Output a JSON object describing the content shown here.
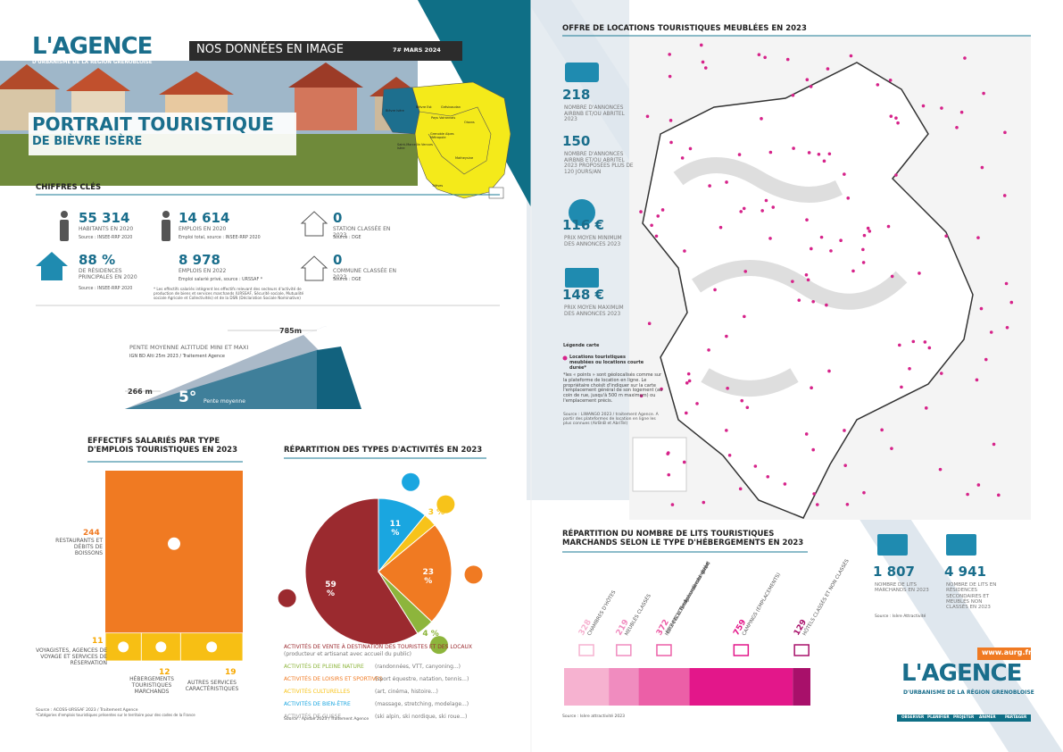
{
  "header": {
    "logo": "L'AGENCE",
    "logo_sub": "D'URBANISME DE LA RÉGION GRENOBLOISE",
    "series": "NOS DONNÉES EN IMAGE",
    "issue": "7# MARS 2024",
    "title": "PORTRAIT TOURISTIQUE",
    "subtitle": "DE BIÈVRE ISÈRE"
  },
  "region_map": {
    "labels": [
      "Bièvre Isère",
      "Bièvre Est",
      "Pays Voironnais",
      "Grésivaudan",
      "Saint-Marcellin Vercors Isère",
      "Grenoble Alpes Métropole",
      "Oisans",
      "Matheysine",
      "Trièves"
    ]
  },
  "key_figures": {
    "title": "CHIFFRES CLÉS",
    "items": [
      {
        "value": "55 314",
        "label": "HABITANTS EN 2020",
        "source": "Source : INSEE-RRP 2020"
      },
      {
        "value": "14 614",
        "label": "EMPLOIS EN 2020",
        "source": "Emploi total, source : INSEE-RRP 2020"
      },
      {
        "value": "0",
        "label": "STATION CLASSÉE EN 2023",
        "source": "Source : DGE"
      },
      {
        "value": "88 %",
        "label": "DE RÉSIDENCES PRINCIPALES EN 2020",
        "source": "Source : INSEE-RRP 2020"
      },
      {
        "value": "8 978",
        "label": "EMPLOIS EN 2022",
        "source": "Emploi salarié privé, source : URSSAF *"
      },
      {
        "value": "0",
        "label": "COMMUNE CLASSÉE EN 2023",
        "source": "Source : DGE"
      }
    ],
    "footnote": "* Les effectifs salariés intègrent les effectifs relevant des secteurs d'activité de production de biens et services marchands (URSSAF, Sécurité sociale, Mutualité sociale Agricole et Collectivités) et de la DSN (Déclaration Sociale Nominative)"
  },
  "slope": {
    "max": "785m",
    "title": "PENTE MOYENNE ALTITUDE MINI ET MAXI",
    "source": "IGN BD Alti 25m 2023 / Traitement Agence",
    "min": "266 m",
    "value": "5°",
    "label": "Pente moyenne"
  },
  "chart_data": [
    {
      "type": "treemap",
      "title": "EFFECTIFS SALARIÉS PAR TYPE D'EMPLOIS TOURISTIQUES EN 2023",
      "categories": [
        "RESTAURANTS ET DÉBITS DE BOISSONS",
        "VOYAGISTES, AGENCES DE VOYAGE ET SERVICES DE RÉSERVATION",
        "HÉBERGEMENTS TOURISTIQUES MARCHANDS",
        "AUTRES SERVICES CARACTÉRISTIQUES"
      ],
      "values": [
        244,
        11,
        12,
        19
      ],
      "colors": [
        "#f07a22",
        "#f7bf14",
        "#f7bf14",
        "#f7bf14"
      ],
      "source": "Source : ACOSS-URSSAF 2023 / Traitement Agence",
      "footnote": "*Catégories d'emplois touristiques présentes sur le territoire pour des codes de la France"
    },
    {
      "type": "pie",
      "title": "RÉPARTITION DES TYPES D'ACTIVITÉS EN 2023",
      "categories": [
        "ACTIVITÉS DE VENTE À DESTINATION DES TOURISTES ET DES LOCAUX",
        "ACTIVITÉS DE PLEINE NATURE",
        "ACTIVITÉS DE LOISIRS ET SPORTIVES",
        "ACTIVITÉS CULTURELLES",
        "ACTIVITÉS DE BIEN-ÊTRE",
        "ACTIVITÉS DE GLISSE"
      ],
      "descriptions": [
        "(producteur et artisanat avec accueil du public)",
        "(randonnées, VTT, canyoning...)",
        "(sport équestre, natation, tennis...)",
        "(art, cinéma, histoire...)",
        "(massage, stretching, modelage...)",
        "(ski alpin, ski nordique, ski roue...)"
      ],
      "values": [
        59,
        4,
        23,
        3,
        11,
        0
      ],
      "value_labels": [
        "59 %",
        "4 %",
        "23 %",
        "3 %",
        "11 %",
        null
      ],
      "colors": [
        "#9b2a2f",
        "#8db53c",
        "#f07a22",
        "#f7c31a",
        "#1aa6e0",
        "#9a9a9a"
      ],
      "source": "Source : Apidae 2023 / Traitement Agence"
    },
    {
      "type": "stacked-bar",
      "title": "RÉPARTITION DU NOMBRE DE LITS TOURISTIQUES MARCHANDS SELON LE TYPE D'HÉBERGEMENTS EN 2023",
      "categories": [
        "CHAMBRES D'HÔTES",
        "MEUBLÉS CLASSÉS",
        "HÉBERGEMENTS COLLECTIFS (centres et villages de vacances, résidences de tourisme, gîtes de séjour etc.)",
        "CAMPINGS (EMPLACEMENTS)",
        "HÔTELS CLASSÉS ET NON CLASSÉS"
      ],
      "values": [
        328,
        219,
        372,
        759,
        129
      ],
      "colors": [
        "#f6b2d0",
        "#f08cbf",
        "#ec5fa7",
        "#e3178a",
        "#a8106a"
      ],
      "source": "Source : Isère attractivité 2023"
    }
  ],
  "rentals": {
    "title": "OFFRE DE LOCATIONS TOURISTIQUES MEUBLÉES EN 2023",
    "items": [
      {
        "value": "218",
        "label": "NOMBRE D'ANNONCES AIRBNB ET/OU ABRITEL 2023"
      },
      {
        "value": "150",
        "label": "NOMBRE D'ANNONCES AIRBNB ET/OU ABRITEL 2023 PROPOSÉES PLUS DE 120 JOURS/AN"
      },
      {
        "value": "116 €",
        "label": "PRIX MOYEN MINIMUM DES ANNONCES 2023"
      },
      {
        "value": "148 €",
        "label": "PRIX MOYEN MAXIMUM DES ANNONCES 2023"
      }
    ],
    "legend_title": "Légende carte",
    "legend_item": "Locations touristiques meublées ou locations courte durée*",
    "legend_note": "*les « points » sont géolocalisés comme sur la plateforme de location en ligne. Le propriétaire choisit d'indiquer sur la carte l'emplacement général de son logement (au coin de rue, jusqu'à 500 m maximum) ou l'emplacement précis.",
    "source": "Source : LIWANGO 2023 / traitement Agence. A partir des plateformes de location en ligne les plus connues (AirBnB et AbriTel)"
  },
  "beds_totals": {
    "items": [
      {
        "value": "1 807",
        "label": "NOMBRE DE LITS MARCHANDS EN 2023"
      },
      {
        "value": "4 941",
        "label": "NOMBRE DE LITS EN RÉSIDENCES SECONDAIRES ET MEUBLÉS NON CLASSÉS EN 2023"
      }
    ],
    "source": "Source : Isère Attractivité"
  },
  "footer": {
    "url": "www.aurg.fr",
    "logo": "L'AGENCE",
    "logo_sub": "D'URBANISME DE LA RÉGION GRENOBLOISE",
    "nav": [
      "OBSERVER",
      "PLANIFIER",
      "PROJETER",
      "ANIMER",
      "PARTAGER"
    ]
  }
}
